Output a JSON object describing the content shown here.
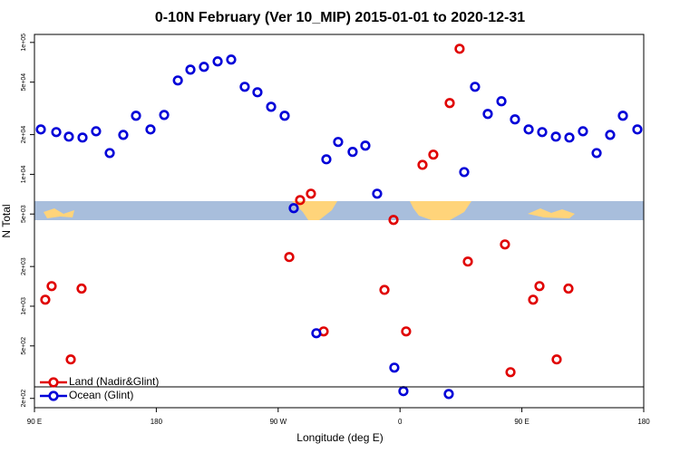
{
  "chart_data": {
    "type": "scatter",
    "title": "0-10N February (Ver 10_MIP)   2015-01-01 to 2020-12-31",
    "x_label": "Longitude (deg E)",
    "y_label": "N Total",
    "xlim": [
      90,
      540
    ],
    "xticks": [
      {
        "value": 90,
        "label": "90 E"
      },
      180,
      {
        "value": 270,
        "label": "90 W"
      },
      {
        "value": 360,
        "label": "0"
      },
      {
        "value": 450,
        "label": "90 E"
      },
      {
        "value": 540,
        "label": "180"
      }
    ],
    "ylim": [
      170,
      115000
    ],
    "log_y": true,
    "yticks": [
      {
        "value": 200,
        "label": "2e+02"
      },
      {
        "value": 500,
        "label": "5e+02"
      },
      {
        "value": 1000,
        "label": "1e+03"
      },
      {
        "value": 2000,
        "label": "2e+03"
      },
      {
        "value": 5000,
        "label": "5e+03"
      },
      {
        "value": 10000,
        "label": "1e+04"
      },
      {
        "value": 20000,
        "label": "2e+04"
      },
      {
        "value": 50000,
        "label": "5e+04"
      },
      {
        "value": 100000,
        "label": "1e+05"
      }
    ],
    "legend": "bottom-left",
    "series": [
      {
        "name": "Land (Nadir&Glint)",
        "color": "#e00000",
        "x": [
          98.0,
          102.7,
          116.8,
          124.8,
          278.2,
          286.2,
          294.2,
          303.6,
          348.5,
          355.2,
          364.5,
          376.6,
          384.6,
          396.7,
          404.0,
          410.1,
          437.5,
          441.6,
          458.3,
          463.0,
          475.7,
          484.4
        ],
        "values": [
          1120,
          1420,
          395,
          1360,
          2360,
          6380,
          7130,
          644,
          1330,
          4510,
          644,
          11800,
          14100,
          34700,
          89500,
          2180,
          2940,
          316,
          1120,
          1420,
          395,
          1360
        ]
      },
      {
        "name": "Ocean (Glint)",
        "color": "#0000d8",
        "x": [
          94.7,
          106.1,
          115.4,
          125.5,
          135.5,
          145.6,
          155.6,
          165.0,
          175.7,
          185.8,
          195.9,
          205.2,
          215.2,
          225.3,
          235.3,
          245.3,
          254.7,
          264.8,
          274.8,
          281.5,
          298.2,
          305.6,
          314.3,
          325.0,
          334.4,
          343.1,
          355.8,
          362.5,
          396.0,
          407.4,
          415.4,
          424.8,
          434.9,
          444.9,
          455.0,
          465.0,
          475.1,
          485.1,
          495.1,
          505.2,
          515.2,
          524.6,
          535.3
        ],
        "values": [
          21900,
          20900,
          19300,
          19000,
          21200,
          14500,
          19900,
          27800,
          21900,
          28200,
          51500,
          62200,
          65300,
          71800,
          74100,
          46100,
          41900,
          32500,
          27800,
          5540,
          624,
          13000,
          17600,
          14800,
          16500,
          7130,
          342,
          227,
          216,
          10400,
          46100,
          28700,
          35800,
          26100,
          21900,
          20900,
          19300,
          19000,
          21200,
          14500,
          19900,
          27800,
          21900
        ]
      }
    ]
  }
}
